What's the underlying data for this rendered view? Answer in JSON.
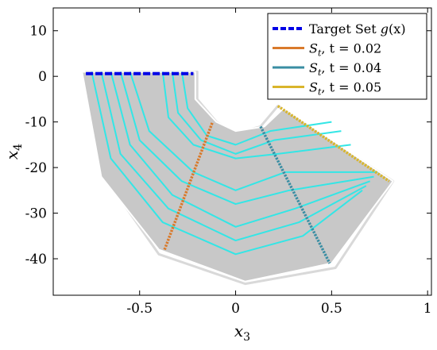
{
  "chart_data": {
    "type": "line",
    "xlim": [
      -0.95,
      1.02
    ],
    "ylim": [
      -48,
      15
    ],
    "xticks": [
      -0.5,
      0,
      0.5,
      1
    ],
    "xtick_labels": [
      "-0.5",
      "0",
      "0.5",
      "1"
    ],
    "yticks": [
      -40,
      -30,
      -20,
      -10,
      0,
      10
    ],
    "ytick_labels": [
      "-40",
      "-30",
      "-20",
      "-10",
      "0",
      "10"
    ],
    "xlabel": {
      "main": "x",
      "sub": "3"
    },
    "ylabel": {
      "main": "x",
      "sub": "4"
    },
    "grid": false,
    "legend_position": "top-right",
    "legend": [
      {
        "pre": "Target Set ",
        "italic": "g",
        "post": "(x)",
        "color": "#0000e6",
        "style": "dashed"
      },
      {
        "pre": "",
        "italic": "S",
        "sub": "t",
        "post": ", t = 0.02",
        "color": "#d97a2b",
        "style": "solid"
      },
      {
        "pre": "",
        "italic": "S",
        "sub": "t",
        "post": ", t = 0.04",
        "color": "#3a8ea3",
        "style": "solid"
      },
      {
        "pre": "",
        "italic": "S",
        "sub": "t",
        "post": ", t = 0.05",
        "color": "#d9b52b",
        "style": "solid"
      }
    ],
    "colors": {
      "region_fill": "#c8c8c8",
      "region_outline": "#ffffff",
      "outer_boundary": "#d9d9d9",
      "level_sets": "#33e6e6"
    },
    "region": [
      [
        -0.8,
        1
      ],
      [
        -0.21,
        1
      ],
      [
        -0.21,
        -5
      ],
      [
        -0.1,
        -10
      ],
      [
        0,
        -12
      ],
      [
        0.15,
        -11
      ],
      [
        0.25,
        -7
      ],
      [
        0.82,
        -23
      ],
      [
        0.5,
        -41
      ],
      [
        0.05,
        -45
      ],
      [
        -0.4,
        -38
      ],
      [
        -0.7,
        -22
      ]
    ],
    "outer_boundary": [
      [
        -0.2,
        1
      ],
      [
        -0.2,
        -5
      ],
      [
        -0.1,
        -10
      ],
      [
        0,
        -12.5
      ],
      [
        0.13,
        -11
      ],
      [
        0.22,
        -6.5
      ],
      [
        0.82,
        -23
      ],
      [
        0.52,
        -42
      ],
      [
        0.05,
        -45.5
      ],
      [
        -0.4,
        -39
      ],
      [
        -0.7,
        -21
      ],
      [
        -0.78,
        1
      ]
    ],
    "level_sets": [
      [
        [
          -0.75,
          1
        ],
        [
          -0.65,
          -18
        ],
        [
          -0.38,
          -32
        ],
        [
          0.0,
          -39
        ],
        [
          0.35,
          -35
        ],
        [
          0.66,
          -25
        ]
      ],
      [
        [
          -0.7,
          1
        ],
        [
          -0.6,
          -17
        ],
        [
          -0.35,
          -29
        ],
        [
          0.0,
          -36
        ],
        [
          0.33,
          -32
        ],
        [
          0.68,
          -24
        ]
      ],
      [
        [
          -0.65,
          1
        ],
        [
          -0.55,
          -15
        ],
        [
          -0.33,
          -26
        ],
        [
          0.0,
          -33
        ],
        [
          0.31,
          -29
        ],
        [
          0.7,
          -23
        ]
      ],
      [
        [
          -0.6,
          1
        ],
        [
          -0.5,
          -14
        ],
        [
          -0.28,
          -23
        ],
        [
          0.0,
          -28
        ],
        [
          0.28,
          -25
        ],
        [
          0.72,
          -22
        ]
      ],
      [
        [
          -0.55,
          1
        ],
        [
          -0.45,
          -12
        ],
        [
          -0.22,
          -21
        ],
        [
          0.0,
          -25
        ],
        [
          0.26,
          -21
        ],
        [
          0.74,
          -21
        ]
      ],
      [
        [
          -0.38,
          1
        ],
        [
          -0.35,
          -9
        ],
        [
          -0.22,
          -15
        ],
        [
          0.0,
          -18
        ],
        [
          0.22,
          -17
        ],
        [
          0.6,
          -15
        ]
      ],
      [
        [
          -0.33,
          1
        ],
        [
          -0.3,
          -8
        ],
        [
          -0.18,
          -14
        ],
        [
          0.0,
          -17
        ],
        [
          0.2,
          -14
        ],
        [
          0.55,
          -12
        ]
      ],
      [
        [
          -0.28,
          1
        ],
        [
          -0.25,
          -7
        ],
        [
          -0.15,
          -13
        ],
        [
          0.0,
          -15
        ],
        [
          0.18,
          -12
        ],
        [
          0.5,
          -10
        ]
      ]
    ],
    "series": [
      {
        "name": "Target Set g(x)",
        "style": "dashed",
        "color": "#0000e6",
        "points": [
          [
            -0.78,
            0.6
          ],
          [
            -0.22,
            0.6
          ]
        ]
      },
      {
        "name": "S_t, t = 0.02",
        "style": "dotted",
        "color": "#d97a2b",
        "points": [
          [
            -0.37,
            -38
          ],
          [
            -0.12,
            -10
          ]
        ]
      },
      {
        "name": "S_t, t = 0.04",
        "style": "dotted",
        "color": "#3a8ea3",
        "points": [
          [
            0.13,
            -11
          ],
          [
            0.49,
            -41
          ]
        ]
      },
      {
        "name": "S_t, t = 0.05",
        "style": "dotted",
        "color": "#d9b52b",
        "points": [
          [
            0.22,
            -6.5
          ],
          [
            0.8,
            -23
          ]
        ]
      }
    ]
  }
}
